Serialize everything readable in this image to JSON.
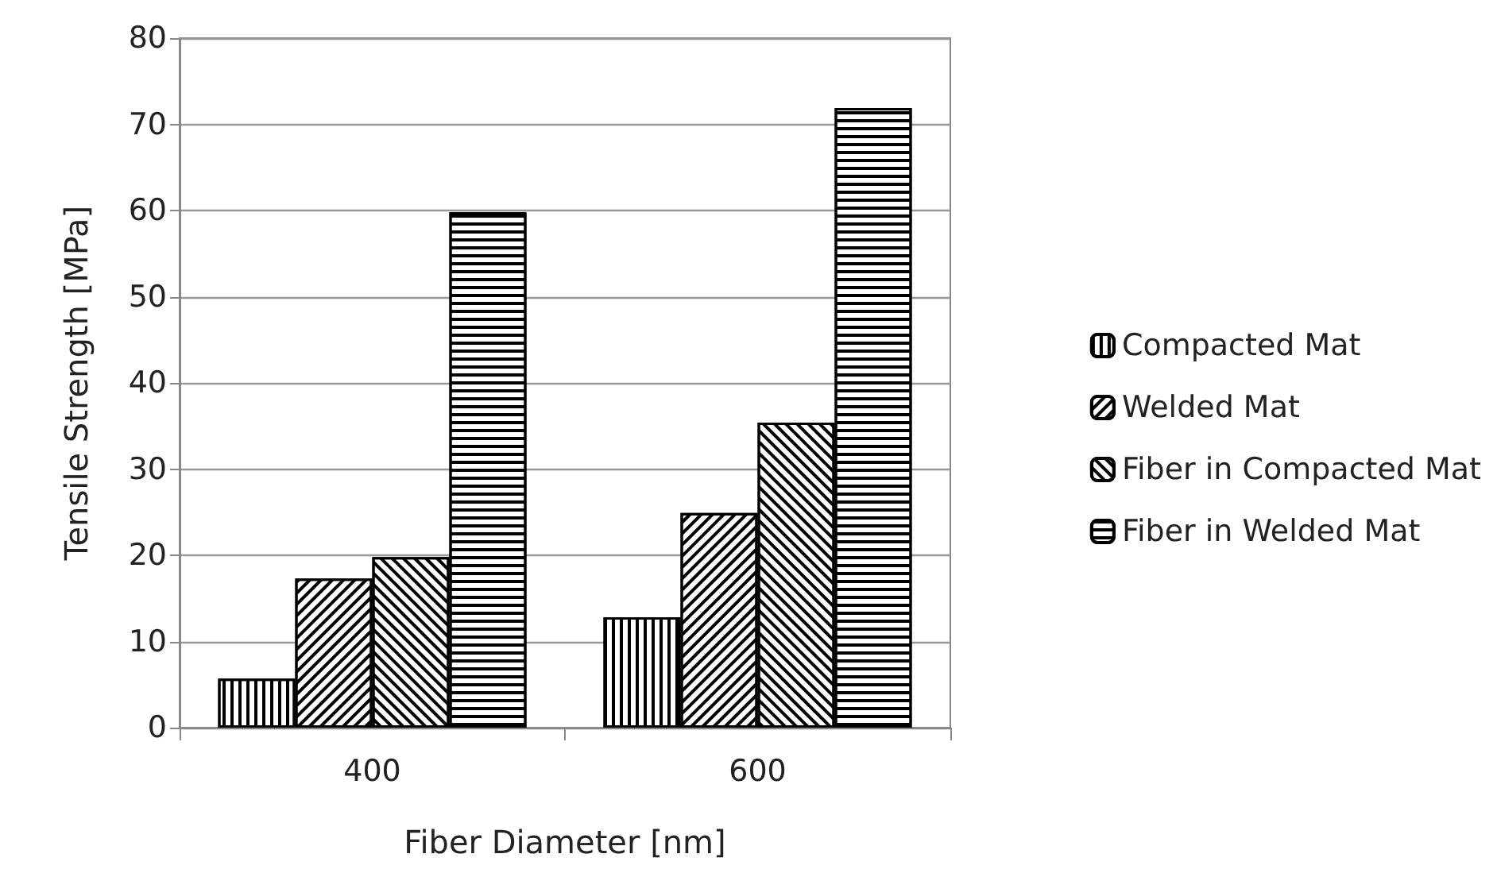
{
  "chart_data": {
    "type": "bar",
    "xlabel": "Fiber Diameter [nm]",
    "ylabel": "Tensile Strength [MPa]",
    "categories": [
      "400",
      "600"
    ],
    "series": [
      {
        "name": "Compacted Mat",
        "color": "#ffffff",
        "values": [
          5.7,
          12.8
        ]
      },
      {
        "name": "Welded Mat",
        "color": "#ffffff",
        "values": [
          17.3,
          24.9
        ]
      },
      {
        "name": "Fiber in Compacted Mat",
        "color": "#ffffff",
        "values": [
          19.8,
          35.4
        ]
      },
      {
        "name": "Fiber in Welded Mat",
        "color": "#ffffff",
        "values": [
          59.8,
          71.9
        ]
      }
    ],
    "ylim": [
      0,
      80
    ],
    "yticks": [
      0,
      10,
      20,
      30,
      40,
      50,
      60,
      70,
      80
    ],
    "grid": "y",
    "legend": "right"
  }
}
